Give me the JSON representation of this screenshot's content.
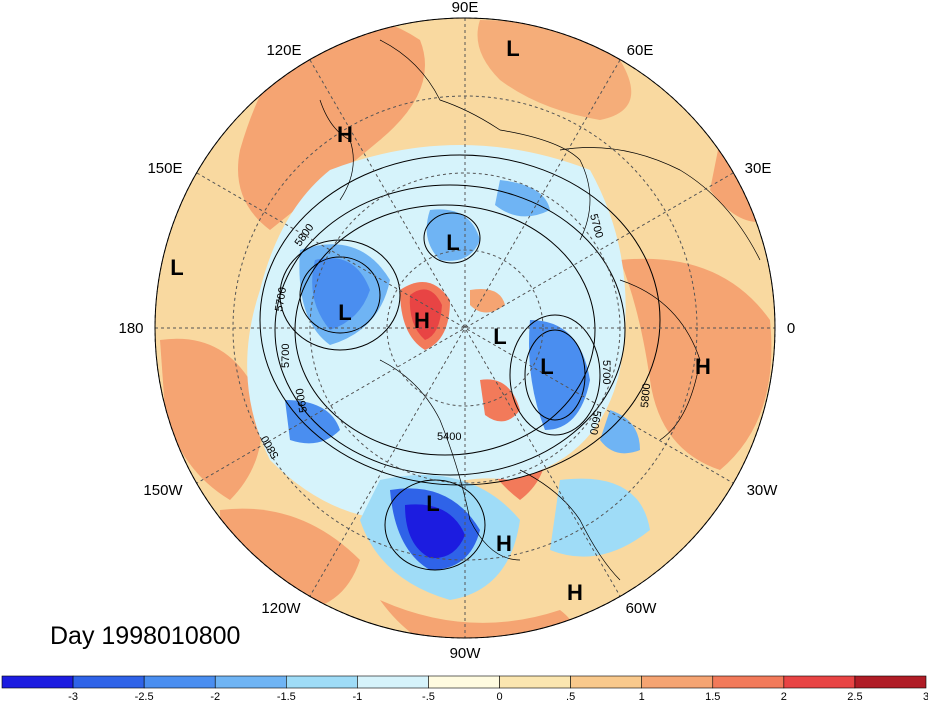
{
  "day_label": "Day 1998010800",
  "longitude_labels": [
    "90E",
    "60E",
    "30E",
    "0",
    "30W",
    "60W",
    "90W",
    "120W",
    "150W",
    "180",
    "150E",
    "120E"
  ],
  "centers": [
    "L",
    "L",
    "L",
    "L",
    "L",
    "L",
    "L",
    "H",
    "H",
    "H",
    "H",
    "H"
  ],
  "contour_labels": [
    "5800",
    "5700",
    "5700",
    "5600",
    "5800",
    "5700",
    "5700",
    "5600",
    "5800",
    "5400"
  ],
  "colorbar": {
    "tick_labels": [
      "-3",
      "-2.5",
      "-2",
      "-1.5",
      "-1",
      "-.5",
      "0",
      ".5",
      "1",
      "1.5",
      "2",
      "2.5",
      "3"
    ],
    "colors": [
      "#1c1ce0",
      "#2f63e8",
      "#4a8ef0",
      "#6fb4f4",
      "#9fdcf7",
      "#d6f3fb",
      "#fffbe0",
      "#fbe6b0",
      "#f9c98c",
      "#f5a472",
      "#f27a5a",
      "#e84444",
      "#b01c26"
    ]
  },
  "colors": {
    "background": "#ffffff",
    "warm_anomaly": "#f5a472",
    "cold_anomaly": "#4a8ef0",
    "land_outline": "#000000"
  }
}
